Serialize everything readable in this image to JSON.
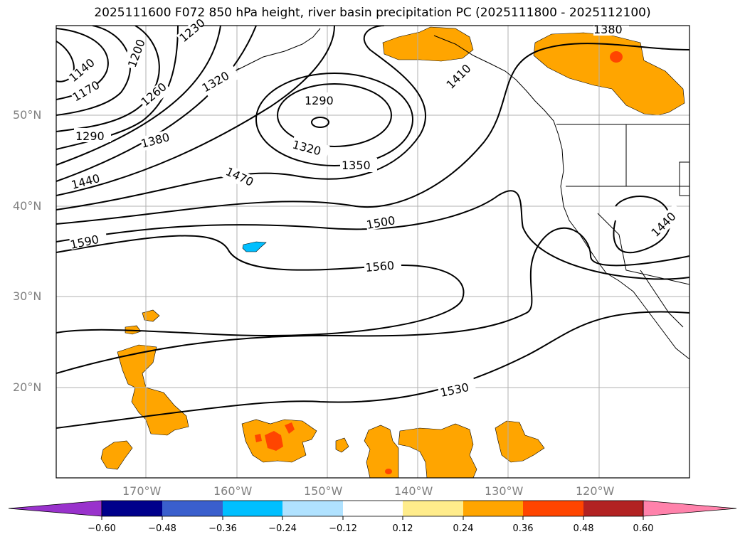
{
  "title": "2025111600 F072 850 hPa height, river basin precipitation PC (2025111800 - 2025112100)",
  "map": {
    "lat_labels": [
      "50°N",
      "40°N",
      "30°N",
      "20°N"
    ],
    "lon_labels": [
      "170°W",
      "160°W",
      "150°W",
      "140°W",
      "130°W",
      "120°W"
    ],
    "contour_labels": [
      "1140",
      "1170",
      "1200",
      "1230",
      "1260",
      "1290",
      "1320",
      "1290",
      "1380",
      "1320",
      "1350",
      "1410",
      "1380",
      "1440",
      "1470",
      "1500",
      "1590",
      "1560",
      "1440",
      "1530"
    ],
    "colors": {
      "orange": "#ffa500",
      "red_orange": "#ff4500",
      "light_blue": "#00bfff",
      "coast": "#000000"
    }
  },
  "colorbar": {
    "ticks": [
      "−0.60",
      "−0.48",
      "−0.36",
      "−0.24",
      "−0.12",
      "0.12",
      "0.24",
      "0.36",
      "0.48",
      "0.60"
    ],
    "colors": [
      "#9932cc",
      "#00008b",
      "#3a5fcd",
      "#00bfff",
      "#b0e2ff",
      "#ffffff",
      "#ffec8b",
      "#ffa500",
      "#ff4500",
      "#b22222",
      "#ff82ab"
    ]
  }
}
